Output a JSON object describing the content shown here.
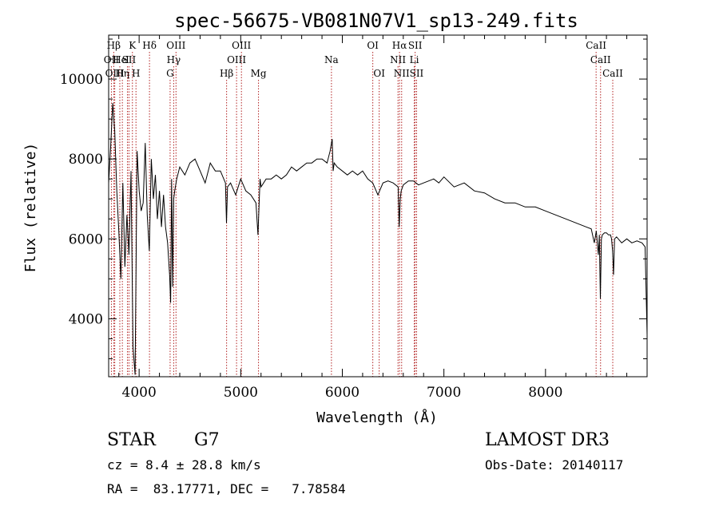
{
  "chart_data": {
    "type": "line",
    "title": "spec-56675-VB081N07V1_sp13-249.fits",
    "xlabel": "Wavelength (Å)",
    "ylabel": "Flux (relative)",
    "xlim": [
      3700,
      9000
    ],
    "ylim": [
      2550,
      11100
    ],
    "x_ticks": [
      4000,
      5000,
      6000,
      7000,
      8000
    ],
    "x_tick_labels": [
      "4000",
      "5000",
      "6000",
      "7000",
      "8000"
    ],
    "y_ticks": [
      4000,
      6000,
      8000,
      10000
    ],
    "y_tick_labels": [
      "4000",
      "6000",
      "8000",
      "10000"
    ],
    "grid": false,
    "line_color": "#000000",
    "marker_color": "#b22222",
    "series": [
      {
        "name": "flux",
        "x": [
          3700,
          3720,
          3740,
          3760,
          3780,
          3800,
          3820,
          3840,
          3860,
          3880,
          3900,
          3920,
          3940,
          3960,
          3980,
          4000,
          4020,
          4040,
          4060,
          4080,
          4100,
          4120,
          4140,
          4160,
          4180,
          4200,
          4220,
          4240,
          4260,
          4280,
          4300,
          4310,
          4320,
          4330,
          4340,
          4350,
          4370,
          4400,
          4450,
          4500,
          4550,
          4600,
          4650,
          4700,
          4750,
          4800,
          4850,
          4860,
          4870,
          4900,
          4950,
          5000,
          5050,
          5100,
          5150,
          5170,
          5180,
          5190,
          5200,
          5250,
          5300,
          5350,
          5400,
          5450,
          5500,
          5550,
          5600,
          5650,
          5700,
          5750,
          5800,
          5850,
          5880,
          5890,
          5900,
          5910,
          5920,
          5950,
          6000,
          6050,
          6100,
          6150,
          6200,
          6250,
          6300,
          6350,
          6400,
          6450,
          6500,
          6550,
          6560,
          6570,
          6580,
          6600,
          6650,
          6700,
          6750,
          6800,
          6850,
          6900,
          6950,
          7000,
          7100,
          7200,
          7300,
          7400,
          7500,
          7600,
          7700,
          7800,
          7900,
          8000,
          8100,
          8200,
          8300,
          8400,
          8450,
          8480,
          8500,
          8520,
          8530,
          8540,
          8550,
          8560,
          8580,
          8600,
          8620,
          8640,
          8650,
          8660,
          8670,
          8680,
          8700,
          8750,
          8800,
          8850,
          8900,
          8950,
          8980,
          9000
        ],
        "y": [
          7400,
          8300,
          9400,
          8700,
          7200,
          6200,
          5000,
          7400,
          5300,
          6600,
          5600,
          7700,
          3300,
          2600,
          8200,
          7200,
          6700,
          6900,
          8400,
          6600,
          5700,
          8000,
          7000,
          7600,
          6500,
          7200,
          6300,
          7100,
          6300,
          5900,
          5100,
          4400,
          7500,
          4800,
          7000,
          7200,
          7500,
          7800,
          7600,
          7900,
          8000,
          7700,
          7400,
          7900,
          7700,
          7700,
          7400,
          6400,
          7300,
          7400,
          7100,
          7500,
          7200,
          7100,
          6900,
          6100,
          6800,
          7500,
          7300,
          7500,
          7500,
          7600,
          7500,
          7600,
          7800,
          7700,
          7800,
          7900,
          7900,
          8000,
          8000,
          7900,
          8200,
          8350,
          8500,
          7700,
          7900,
          7800,
          7700,
          7600,
          7700,
          7600,
          7700,
          7500,
          7400,
          7100,
          7400,
          7450,
          7400,
          7300,
          6300,
          7000,
          7200,
          7350,
          7450,
          7450,
          7350,
          7400,
          7450,
          7500,
          7400,
          7550,
          7300,
          7400,
          7200,
          7150,
          7000,
          6900,
          6900,
          6800,
          6800,
          6700,
          6600,
          6500,
          6400,
          6300,
          6250,
          5900,
          6200,
          5600,
          6100,
          4500,
          6000,
          6100,
          6150,
          6150,
          6100,
          6100,
          6000,
          5700,
          5100,
          6000,
          6050,
          5900,
          6000,
          5900,
          5950,
          5900,
          5800,
          3600
        ]
      }
    ],
    "lines": [
      {
        "name": "Hβ",
        "x": 3750,
        "row": 1
      },
      {
        "name": "OII",
        "x": 3727,
        "row": 2
      },
      {
        "name": "OIII",
        "x": 3760,
        "row": 3
      },
      {
        "name": "He",
        "x": 3810,
        "row": 2
      },
      {
        "name": "Hη",
        "x": 3835,
        "row": 3
      },
      {
        "name": "K",
        "x": 3934,
        "row": 1
      },
      {
        "name": "I",
        "x": 3885,
        "row": 2
      },
      {
        "name": "SII",
        "x": 3900,
        "row": 2
      },
      {
        "name": "H",
        "x": 3969,
        "row": 3
      },
      {
        "name": "Hδ",
        "x": 4102,
        "row": 1
      },
      {
        "name": "OIII",
        "x": 4363,
        "row": 1
      },
      {
        "name": "Hγ",
        "x": 4340,
        "row": 2
      },
      {
        "name": "G",
        "x": 4305,
        "row": 3
      },
      {
        "name": "Hβ",
        "x": 4861,
        "row": 3
      },
      {
        "name": "OIII",
        "x": 5007,
        "row": 1
      },
      {
        "name": "OIII",
        "x": 4959,
        "row": 2
      },
      {
        "name": "Mg",
        "x": 5175,
        "row": 3
      },
      {
        "name": "Na",
        "x": 5893,
        "row": 2
      },
      {
        "name": "OI",
        "x": 6300,
        "row": 1
      },
      {
        "name": "OI",
        "x": 6363,
        "row": 3
      },
      {
        "name": "Hα",
        "x": 6563,
        "row": 1
      },
      {
        "name": "SII",
        "x": 6717,
        "row": 1
      },
      {
        "name": "NII",
        "x": 6548,
        "row": 2
      },
      {
        "name": "Li",
        "x": 6708,
        "row": 2
      },
      {
        "name": "NII",
        "x": 6584,
        "row": 3
      },
      {
        "name": "SII",
        "x": 6731,
        "row": 3
      },
      {
        "name": "CaII",
        "x": 8498,
        "row": 1
      },
      {
        "name": "CaII",
        "x": 8542,
        "row": 2
      },
      {
        "name": "CaII",
        "x": 8662,
        "row": 3
      }
    ]
  },
  "info": {
    "object_class": "STAR",
    "subclass": "G7",
    "redshift": "cz = 8.4 ± 28.8 km/s",
    "coords": "RA =  83.17771, DEC =   7.78584",
    "survey": "LAMOST DR3",
    "obs_date": "Obs-Date: 20140117"
  }
}
